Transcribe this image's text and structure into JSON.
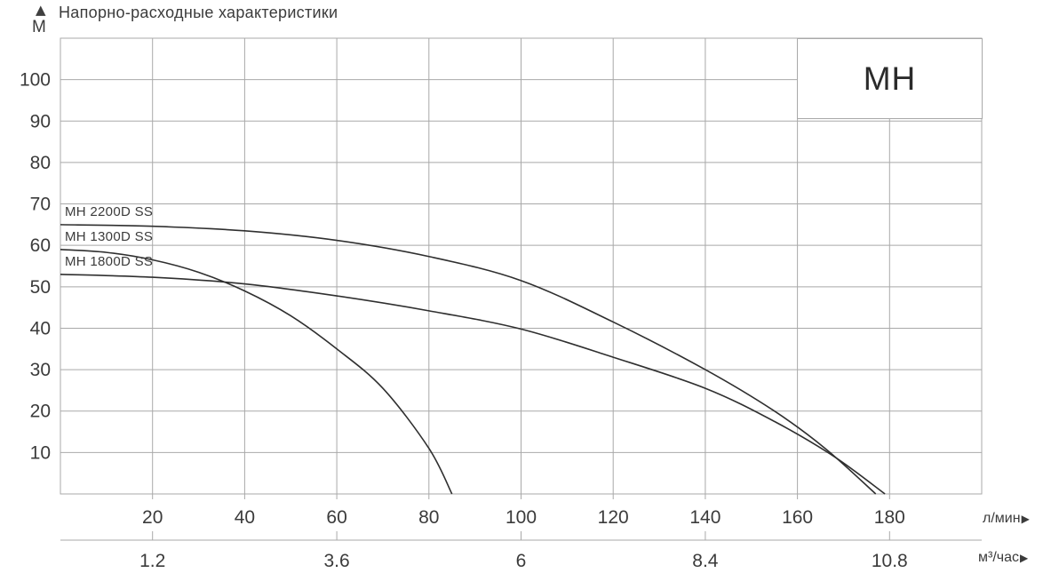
{
  "page": {
    "title": "Напорно-расходные характеристики",
    "y_axis_unit": "М",
    "up_arrow": "▲",
    "right_arrow": "▶",
    "corner_model_label": "MH"
  },
  "chart_data": {
    "type": "line",
    "title": "Напорно-расходные характеристики",
    "ylabel": "М",
    "x_primary_unit": "л/мин",
    "x_secondary_unit": "м³/час",
    "xlim_lpm": [
      0,
      200
    ],
    "ylim_m": [
      0,
      110
    ],
    "grid": true,
    "legend_position": "inline-labels",
    "x_ticks_lpm": [
      20,
      40,
      60,
      80,
      100,
      120,
      140,
      160,
      180
    ],
    "y_ticks_m": [
      10,
      20,
      30,
      40,
      50,
      60,
      70,
      80,
      90,
      100
    ],
    "x_secondary_ticks": [
      {
        "label": "1.2",
        "lpm": 20
      },
      {
        "label": "3.6",
        "lpm": 60
      },
      {
        "label": "6",
        "lpm": 100
      },
      {
        "label": "8.4",
        "lpm": 140
      },
      {
        "label": "10.8",
        "lpm": 180
      }
    ],
    "series": [
      {
        "name": "MH 2200D SS",
        "points_lpm_m": [
          [
            0,
            65
          ],
          [
            20,
            64.6
          ],
          [
            40,
            63.5
          ],
          [
            60,
            61.2
          ],
          [
            80,
            57.3
          ],
          [
            100,
            51.5
          ],
          [
            120,
            41.5
          ],
          [
            140,
            30
          ],
          [
            155,
            20
          ],
          [
            166,
            11
          ],
          [
            177,
            0
          ]
        ]
      },
      {
        "name": "MH 1300D SS",
        "points_lpm_m": [
          [
            0,
            59
          ],
          [
            10,
            58.3
          ],
          [
            20,
            56.5
          ],
          [
            30,
            53.5
          ],
          [
            40,
            49
          ],
          [
            50,
            43
          ],
          [
            60,
            35
          ],
          [
            70,
            25.5
          ],
          [
            80,
            11
          ],
          [
            85,
            0
          ]
        ]
      },
      {
        "name": "MH 1800D SS",
        "points_lpm_m": [
          [
            0,
            53
          ],
          [
            20,
            52.3
          ],
          [
            40,
            50.7
          ],
          [
            60,
            47.8
          ],
          [
            80,
            44.2
          ],
          [
            100,
            39.8
          ],
          [
            120,
            33
          ],
          [
            140,
            25.5
          ],
          [
            155,
            17.5
          ],
          [
            168,
            9
          ],
          [
            179,
            0
          ]
        ]
      }
    ]
  },
  "colors": {
    "curve": "#2f2f2f",
    "grid": "#a9a9a9",
    "text": "#3b3b3b",
    "background": "#ffffff"
  }
}
